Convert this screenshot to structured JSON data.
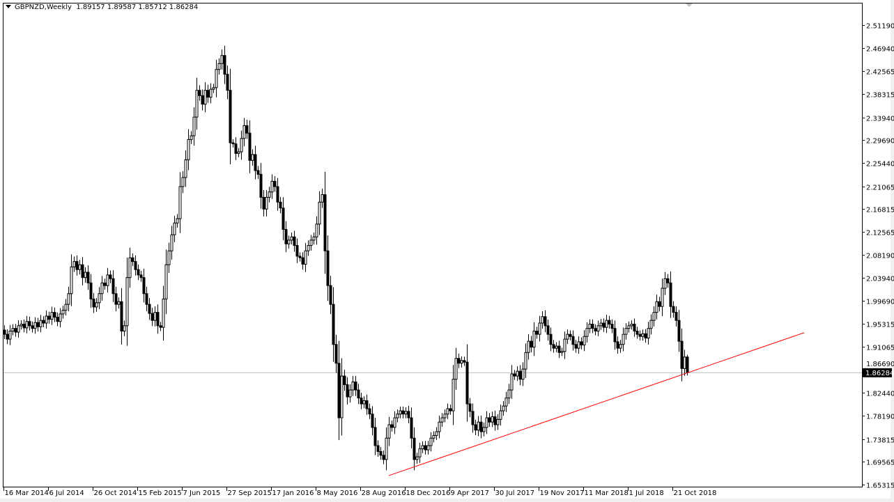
{
  "header": {
    "symbol_timeframe": "GBPNZD,Weekly",
    "ohlc_text": "1.89157 1.89587 1.85712 1.86284"
  },
  "chart_data": {
    "type": "candlestick",
    "symbol": "GBPNZD",
    "timeframe": "Weekly",
    "first_bar_date": "2014-03-16",
    "bar_interval_days": 7,
    "close": [
      1.934,
      1.925,
      1.94,
      1.945,
      1.938,
      1.95,
      1.953,
      1.946,
      1.958,
      1.95,
      1.945,
      1.956,
      1.948,
      1.96,
      1.955,
      1.968,
      1.962,
      1.975,
      1.966,
      1.958,
      1.972,
      1.979,
      1.99,
      2.01,
      2.06,
      2.07,
      2.055,
      2.064,
      2.04,
      2.05,
      2.03,
      2.0,
      1.985,
      1.993,
      2.01,
      2.03,
      2.025,
      2.045,
      2.038,
      2.01,
      1.99,
      1.995,
      1.94,
      1.95,
      2.04,
      2.077,
      2.07,
      2.055,
      2.045,
      2.04,
      2.01,
      1.99,
      1.973,
      1.96,
      1.975,
      1.95,
      1.947,
      2.0,
      2.064,
      2.09,
      2.12,
      2.142,
      2.15,
      2.21,
      2.227,
      2.26,
      2.298,
      2.305,
      2.34,
      2.39,
      2.38,
      2.364,
      2.39,
      2.377,
      2.392,
      2.395,
      2.429,
      2.44,
      2.455,
      2.42,
      2.39,
      2.292,
      2.29,
      2.272,
      2.275,
      2.3,
      2.324,
      2.31,
      2.259,
      2.27,
      2.24,
      2.233,
      2.19,
      2.168,
      2.19,
      2.2,
      2.22,
      2.21,
      2.181,
      2.17,
      2.13,
      2.103,
      2.11,
      2.116,
      2.1,
      2.08,
      2.077,
      2.065,
      2.09,
      2.1,
      2.11,
      2.116,
      2.14,
      2.181,
      2.195,
      2.09,
      2.025,
      1.99,
      1.915,
      1.88,
      1.778,
      1.856,
      1.84,
      1.817,
      1.83,
      1.845,
      1.83,
      1.815,
      1.804,
      1.81,
      1.795,
      1.785,
      1.76,
      1.726,
      1.715,
      1.708,
      1.7,
      1.74,
      1.765,
      1.76,
      1.778,
      1.785,
      1.791,
      1.785,
      1.79,
      1.778,
      1.74,
      1.7,
      1.705,
      1.72,
      1.726,
      1.718,
      1.726,
      1.74,
      1.745,
      1.752,
      1.77,
      1.778,
      1.785,
      1.795,
      1.791,
      1.85,
      1.889,
      1.88,
      1.885,
      1.882,
      1.804,
      1.79,
      1.765,
      1.755,
      1.77,
      1.752,
      1.76,
      1.778,
      1.77,
      1.78,
      1.765,
      1.775,
      1.791,
      1.8,
      1.815,
      1.83,
      1.86,
      1.856,
      1.865,
      1.85,
      1.869,
      1.9,
      1.921,
      1.91,
      1.94,
      1.934,
      1.955,
      1.967,
      1.95,
      1.934,
      1.915,
      1.908,
      1.912,
      1.9,
      1.902,
      1.925,
      1.934,
      1.93,
      1.915,
      1.908,
      1.92,
      1.914,
      1.93,
      1.945,
      1.953,
      1.945,
      1.94,
      1.95,
      1.955,
      1.947,
      1.96,
      1.953,
      1.945,
      1.92,
      1.908,
      1.915,
      1.934,
      1.945,
      1.95,
      1.953,
      1.94,
      1.934,
      1.93,
      1.935,
      1.927,
      1.945,
      1.96,
      1.975,
      1.995,
      1.986,
      2.02,
      2.038,
      2.03,
      1.986,
      1.975,
      1.96,
      1.921,
      1.87,
      1.89157,
      1.86284
    ],
    "last_bar": {
      "open": 1.89157,
      "high": 1.89587,
      "low": 1.85712,
      "close": 1.86284
    },
    "current_price": 1.86284,
    "current_price_label": "1.86284",
    "y_tick_labels": [
      "2.51190",
      "2.46940",
      "2.42565",
      "2.38315",
      "2.33940",
      "2.29690",
      "2.25440",
      "2.21065",
      "2.16815",
      "2.12565",
      "2.08190",
      "2.03940",
      "1.99690",
      "1.95315",
      "1.91065",
      "1.86690",
      "1.82440",
      "1.78190",
      "1.73815",
      "1.69565",
      "1.65315"
    ],
    "x_tick_labels": [
      {
        "label": "16 Mar 2014",
        "date": "2014-03-16"
      },
      {
        "label": "6 Jul 2014",
        "date": "2014-07-06"
      },
      {
        "label": "26 Oct 2014",
        "date": "2014-10-26"
      },
      {
        "label": "15 Feb 2015",
        "date": "2015-02-15"
      },
      {
        "label": "7 Jun 2015",
        "date": "2015-06-07"
      },
      {
        "label": "27 Sep 2015",
        "date": "2015-09-27"
      },
      {
        "label": "17 Jan 2016",
        "date": "2016-01-17"
      },
      {
        "label": "8 May 2016",
        "date": "2016-05-08"
      },
      {
        "label": "28 Aug 2016",
        "date": "2016-08-28"
      },
      {
        "label": "18 Dec 2016",
        "date": "2016-12-18"
      },
      {
        "label": "9 Apr 2017",
        "date": "2017-04-09"
      },
      {
        "label": "30 Jul 2017",
        "date": "2017-07-30"
      },
      {
        "label": "19 Nov 2017",
        "date": "2017-11-19"
      },
      {
        "label": "11 Mar 2018",
        "date": "2018-03-11"
      },
      {
        "label": "1 Jul 2018",
        "date": "2018-07-01"
      },
      {
        "label": "21 Oct 2018",
        "date": "2018-10-21"
      }
    ],
    "trendline": {
      "color": "#ff0000",
      "start": {
        "date": "2016-11-06",
        "price": 1.67
      },
      "end": {
        "date": "2019-09-15",
        "price": 1.937
      }
    },
    "colors": {
      "bull_body": "#ffffff",
      "bear_body": "#000000",
      "outline": "#000000",
      "price_line": "#c0c0c0",
      "price_label_bg": "#000000",
      "price_label_text": "#ffffff"
    },
    "grid": false
  }
}
